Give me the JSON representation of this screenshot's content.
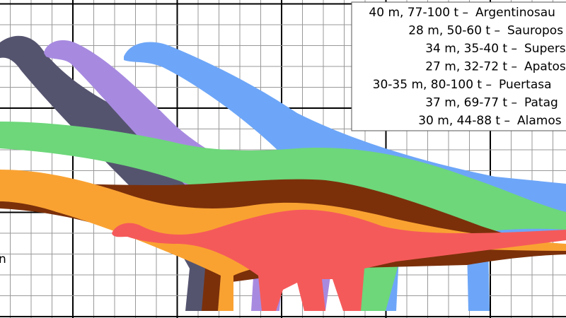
{
  "legend": [
    {
      "measure": "40 m, 77-100 t –",
      "name": "Argentinosau"
    },
    {
      "measure": "28 m, 50-60 t –",
      "name": "Sauropos"
    },
    {
      "measure": "34 m, 35-40 t –",
      "name": "Supers"
    },
    {
      "measure": "27 m, 32-72 t –",
      "name": "Apatos"
    },
    {
      "measure": "30-35 m, 80-100 t –",
      "name": "Puertasa"
    },
    {
      "measure": "37 m, 69-77 t –",
      "name": "Patag"
    },
    {
      "measure": "30 m, 44-88 t –",
      "name": "Alamos"
    }
  ],
  "scale_fragment": "n"
}
